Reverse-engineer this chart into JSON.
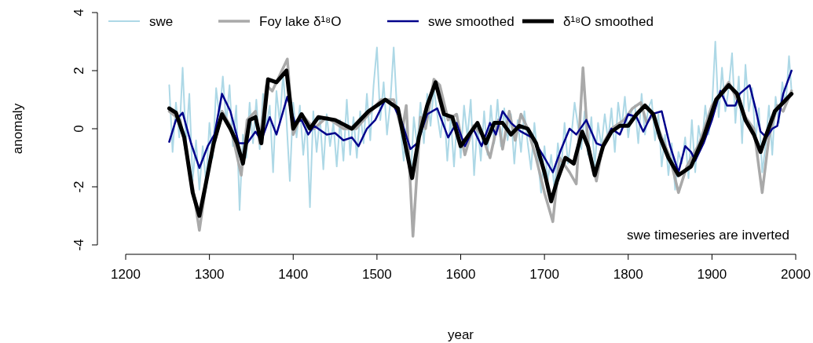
{
  "chart_data": {
    "type": "line",
    "xlabel": "year",
    "ylabel": "anomaly",
    "xlim": [
      1200,
      2000
    ],
    "ylim": [
      -4,
      4
    ],
    "xticks": [
      1200,
      1300,
      1400,
      1500,
      1600,
      1700,
      1800,
      1900,
      2000
    ],
    "yticks": [
      -4,
      -2,
      0,
      2,
      4
    ],
    "legend": "top",
    "grid": false,
    "annotations": [
      "swe timeseries are inverted"
    ],
    "series": [
      {
        "name": "swe",
        "color": "#add8e6",
        "x": [
          1252,
          1256,
          1260,
          1264,
          1268,
          1272,
          1276,
          1280,
          1284,
          1288,
          1292,
          1296,
          1300,
          1304,
          1308,
          1312,
          1316,
          1320,
          1324,
          1328,
          1332,
          1336,
          1340,
          1344,
          1348,
          1352,
          1356,
          1360,
          1364,
          1368,
          1372,
          1376,
          1380,
          1384,
          1388,
          1392,
          1396,
          1400,
          1404,
          1408,
          1412,
          1416,
          1420,
          1424,
          1428,
          1432,
          1436,
          1440,
          1444,
          1448,
          1452,
          1456,
          1460,
          1464,
          1468,
          1472,
          1476,
          1480,
          1484,
          1488,
          1492,
          1496,
          1500,
          1504,
          1508,
          1512,
          1516,
          1520,
          1524,
          1528,
          1532,
          1536,
          1540,
          1544,
          1548,
          1552,
          1556,
          1560,
          1564,
          1568,
          1572,
          1576,
          1580,
          1584,
          1588,
          1592,
          1596,
          1600,
          1604,
          1608,
          1612,
          1616,
          1620,
          1624,
          1628,
          1632,
          1636,
          1640,
          1644,
          1648,
          1652,
          1656,
          1660,
          1664,
          1668,
          1672,
          1676,
          1680,
          1684,
          1688,
          1692,
          1696,
          1700,
          1704,
          1708,
          1712,
          1716,
          1720,
          1724,
          1728,
          1732,
          1736,
          1740,
          1744,
          1748,
          1752,
          1756,
          1760,
          1764,
          1768,
          1772,
          1776,
          1780,
          1784,
          1788,
          1792,
          1796,
          1800,
          1804,
          1808,
          1812,
          1816,
          1820,
          1824,
          1828,
          1832,
          1836,
          1840,
          1844,
          1848,
          1852,
          1856,
          1860,
          1864,
          1868,
          1872,
          1876,
          1880,
          1884,
          1888,
          1892,
          1896,
          1900,
          1904,
          1908,
          1912,
          1916,
          1920,
          1924,
          1928,
          1932,
          1936,
          1940,
          1944,
          1948,
          1952,
          1956,
          1960,
          1964,
          1968,
          1972,
          1976,
          1980,
          1984,
          1988,
          1992,
          1995
        ],
        "values": [
          1.5,
          -0.8,
          0.9,
          -0.3,
          2.1,
          -0.5,
          1.2,
          -1.8,
          -0.4,
          -2.1,
          -0.6,
          -1.9,
          0.2,
          -1.0,
          1.4,
          0.4,
          1.8,
          0.2,
          1.5,
          -0.6,
          0.8,
          -2.8,
          -0.2,
          -1.0,
          0.9,
          -0.5,
          1.0,
          -0.7,
          1.2,
          0.1,
          0.8,
          -1.5,
          1.3,
          0.2,
          1.9,
          0.3,
          -1.8,
          0.9,
          -0.3,
          0.8,
          -0.9,
          0.3,
          -2.7,
          0.6,
          -0.8,
          0.4,
          -1.4,
          0.5,
          -0.6,
          0.2,
          -1.3,
          0.3,
          -1.1,
          1.0,
          -0.9,
          0.4,
          -1.0,
          0.6,
          -0.5,
          1.2,
          -0.4,
          1.5,
          2.8,
          0.3,
          1.6,
          -0.2,
          0.9,
          2.8,
          0.6,
          0.1,
          -1.1,
          0.3,
          -1.9,
          0.4,
          -0.6,
          0.9,
          -0.5,
          1.2,
          0.1,
          1.4,
          0.5,
          -0.3,
          0.8,
          -1.1,
          0.4,
          -1.3,
          0.5,
          -1.0,
          0.8,
          -0.3,
          1.0,
          -1.6,
          0.2,
          -1.1,
          0.6,
          -0.9,
          0.8,
          -0.5,
          1.0,
          -0.6,
          0.7,
          -0.4,
          0.5,
          -1.2,
          0.3,
          -0.8,
          0.6,
          -0.5,
          -1.4,
          0.2,
          -1.0,
          -2.2,
          -0.6,
          -1.8,
          -0.9,
          -2.1,
          -0.5,
          -1.4,
          0.2,
          -1.2,
          -0.3,
          0.9,
          0.1,
          -0.7,
          0.6,
          -0.9,
          0.4,
          -1.3,
          0.2,
          -0.6,
          0.5,
          -0.4,
          0.7,
          -0.8,
          0.9,
          0.0,
          1.1,
          -0.3,
          0.6,
          0.8,
          -0.5,
          1.2,
          -0.2,
          0.7,
          1.0,
          -0.4,
          0.5,
          -1.3,
          -0.2,
          -1.6,
          -0.5,
          -2.1,
          -0.8,
          -1.2,
          -0.3,
          -1.7,
          0.3,
          -1.5,
          0.1,
          -0.6,
          0.8,
          -0.2,
          0.7,
          3.0,
          0.4,
          2.1,
          0.6,
          1.4,
          2.6,
          0.2,
          1.8,
          -0.5,
          2.2,
          0.6,
          1.4,
          -0.4,
          0.7,
          -1.5,
          -0.6,
          0.8,
          -0.9,
          1.1,
          0.2,
          1.6,
          0.8,
          2.5,
          1.3
        ]
      },
      {
        "name": "Foy lake δ¹⁸O",
        "color": "#a9a9a9",
        "x": [
          1252,
          1265,
          1280,
          1288,
          1298,
          1315,
          1325,
          1338,
          1345,
          1355,
          1360,
          1368,
          1375,
          1393,
          1400,
          1410,
          1425,
          1440,
          1460,
          1475,
          1490,
          1505,
          1520,
          1530,
          1535,
          1543,
          1552,
          1558,
          1568,
          1575,
          1585,
          1595,
          1605,
          1615,
          1625,
          1635,
          1645,
          1650,
          1658,
          1665,
          1672,
          1680,
          1690,
          1700,
          1710,
          1718,
          1730,
          1738,
          1746,
          1752,
          1762,
          1770,
          1780,
          1795,
          1805,
          1815,
          1822,
          1830,
          1840,
          1850,
          1860,
          1870,
          1885,
          1900,
          1920,
          1940,
          1950,
          1960,
          1968,
          1978,
          1985,
          1995
        ],
        "values": [
          0.6,
          0.3,
          -2.0,
          -3.5,
          -1.5,
          0.6,
          0.1,
          -1.6,
          0.3,
          0.6,
          -0.5,
          1.5,
          1.3,
          2.4,
          -0.2,
          0.5,
          0.0,
          0.4,
          0.0,
          0.0,
          0.5,
          1.0,
          1.0,
          -0.1,
          0.8,
          -3.7,
          0.4,
          0.0,
          1.7,
          1.5,
          0.3,
          0.5,
          -0.9,
          0.1,
          -0.2,
          -1.0,
          0.3,
          -0.7,
          0.6,
          -0.4,
          0.5,
          0.0,
          -1.0,
          -2.2,
          -3.2,
          -1.0,
          -1.5,
          -1.9,
          2.1,
          -0.5,
          -1.8,
          -0.5,
          0.0,
          0.3,
          0.7,
          0.9,
          0.2,
          0.5,
          -0.3,
          -1.0,
          -2.2,
          -1.3,
          -0.5,
          0.8,
          1.6,
          0.4,
          0.0,
          -2.2,
          -0.3,
          0.8,
          0.6,
          1.3
        ]
      },
      {
        "name": "swe smoothed",
        "color": "#00008b",
        "x": [
          1252,
          1260,
          1268,
          1278,
          1288,
          1298,
          1306,
          1315,
          1325,
          1335,
          1345,
          1355,
          1362,
          1372,
          1380,
          1393,
          1402,
          1410,
          1418,
          1425,
          1435,
          1440,
          1450,
          1460,
          1470,
          1478,
          1488,
          1498,
          1510,
          1520,
          1530,
          1540,
          1548,
          1560,
          1572,
          1585,
          1595,
          1605,
          1615,
          1625,
          1635,
          1642,
          1650,
          1660,
          1672,
          1685,
          1700,
          1710,
          1720,
          1730,
          1738,
          1750,
          1762,
          1770,
          1780,
          1790,
          1800,
          1810,
          1818,
          1828,
          1840,
          1850,
          1860,
          1868,
          1875,
          1880,
          1890,
          1900,
          1910,
          1918,
          1928,
          1933,
          1945,
          1952,
          1958,
          1965,
          1972,
          1978,
          1985,
          1995
        ],
        "values": [
          -0.45,
          0.3,
          0.55,
          -0.5,
          -1.35,
          -0.6,
          -0.2,
          1.2,
          0.6,
          -0.5,
          -0.5,
          -0.1,
          -0.4,
          0.4,
          -0.2,
          1.1,
          0.2,
          0.3,
          -0.2,
          0.1,
          -0.1,
          -0.2,
          -0.15,
          -0.4,
          -0.3,
          -0.6,
          0.0,
          0.3,
          1.0,
          0.8,
          0.2,
          -0.7,
          -0.5,
          0.5,
          0.7,
          -0.3,
          0.2,
          -0.6,
          0.0,
          -0.6,
          0.2,
          -0.2,
          0.6,
          0.2,
          -0.1,
          -0.3,
          -1.0,
          -1.5,
          -0.7,
          0.0,
          -0.2,
          0.3,
          -0.5,
          -0.6,
          0.0,
          -0.2,
          0.5,
          0.4,
          -0.1,
          0.5,
          0.6,
          -0.6,
          -1.5,
          -0.6,
          -0.8,
          -1.1,
          -0.5,
          0.3,
          1.3,
          0.8,
          0.8,
          1.2,
          1.5,
          0.7,
          -0.1,
          -0.3,
          0.0,
          0.1,
          1.2,
          2.0
        ]
      },
      {
        "name": "δ¹⁸O smoothed",
        "color": "#000000",
        "x": [
          1252,
          1260,
          1270,
          1280,
          1288,
          1295,
          1305,
          1315,
          1325,
          1333,
          1340,
          1348,
          1355,
          1362,
          1370,
          1380,
          1392,
          1400,
          1410,
          1420,
          1430,
          1450,
          1470,
          1490,
          1510,
          1525,
          1535,
          1542,
          1550,
          1560,
          1570,
          1580,
          1590,
          1600,
          1610,
          1620,
          1630,
          1640,
          1650,
          1660,
          1670,
          1680,
          1690,
          1700,
          1708,
          1715,
          1725,
          1735,
          1745,
          1752,
          1760,
          1770,
          1780,
          1790,
          1800,
          1810,
          1820,
          1830,
          1838,
          1848,
          1860,
          1875,
          1890,
          1905,
          1920,
          1930,
          1940,
          1950,
          1958,
          1965,
          1975,
          1985,
          1995
        ],
        "values": [
          0.7,
          0.55,
          -0.3,
          -2.2,
          -3.0,
          -2.0,
          -0.5,
          0.5,
          0.0,
          -0.5,
          -1.2,
          0.3,
          0.4,
          -0.5,
          1.7,
          1.6,
          2.0,
          0.0,
          0.5,
          0.0,
          0.4,
          0.3,
          0.0,
          0.6,
          1.0,
          0.7,
          -0.7,
          -1.7,
          -0.3,
          0.8,
          1.6,
          0.5,
          0.4,
          -0.6,
          -0.2,
          0.2,
          -0.5,
          0.2,
          0.2,
          -0.2,
          0.1,
          0.0,
          -0.5,
          -1.5,
          -2.5,
          -1.8,
          -1.0,
          -1.2,
          -0.1,
          -0.6,
          -1.6,
          -0.6,
          -0.1,
          0.1,
          0.1,
          0.5,
          0.8,
          0.5,
          -0.3,
          -1.0,
          -1.6,
          -1.3,
          -0.3,
          1.0,
          1.5,
          1.2,
          0.3,
          -0.2,
          -0.8,
          -0.2,
          0.6,
          0.9,
          1.2
        ]
      }
    ]
  }
}
